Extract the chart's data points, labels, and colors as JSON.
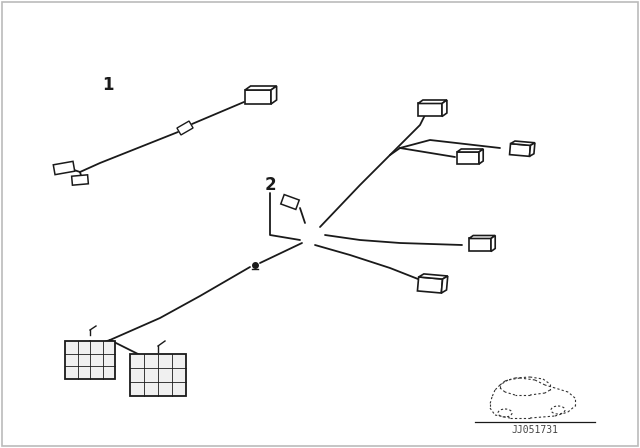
{
  "bg_color": "#ffffff",
  "line_color": "#1a1a1a",
  "border_color": "#bbbbbb",
  "label1": "1",
  "label2": "2",
  "watermark": "JJ051731",
  "figsize": [
    6.4,
    4.48
  ],
  "dpi": 100
}
